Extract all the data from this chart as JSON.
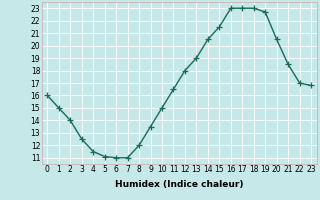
{
  "x": [
    0,
    1,
    2,
    3,
    4,
    5,
    6,
    7,
    8,
    9,
    10,
    11,
    12,
    13,
    14,
    15,
    16,
    17,
    18,
    19,
    20,
    21,
    22,
    23
  ],
  "y": [
    16,
    15,
    14,
    12.5,
    11.5,
    11.1,
    11.0,
    11.0,
    12.0,
    13.5,
    15.0,
    16.5,
    18.0,
    19.0,
    20.5,
    21.5,
    23.0,
    23.0,
    23.0,
    22.7,
    20.5,
    18.5,
    17.0,
    16.8
  ],
  "line_color": "#1a6b5a",
  "marker": "+",
  "marker_size": 4,
  "bg_color": "#c6e8e8",
  "grid_color": "#b0d0d0",
  "xlabel": "Humidex (Indice chaleur)",
  "xlim": [
    -0.5,
    23.5
  ],
  "ylim": [
    10.5,
    23.5
  ],
  "yticks": [
    11,
    12,
    13,
    14,
    15,
    16,
    17,
    18,
    19,
    20,
    21,
    22,
    23
  ],
  "xticks": [
    0,
    1,
    2,
    3,
    4,
    5,
    6,
    7,
    8,
    9,
    10,
    11,
    12,
    13,
    14,
    15,
    16,
    17,
    18,
    19,
    20,
    21,
    22,
    23
  ],
  "xlabel_fontsize": 6.5,
  "tick_fontsize": 5.5,
  "linewidth": 1.0
}
